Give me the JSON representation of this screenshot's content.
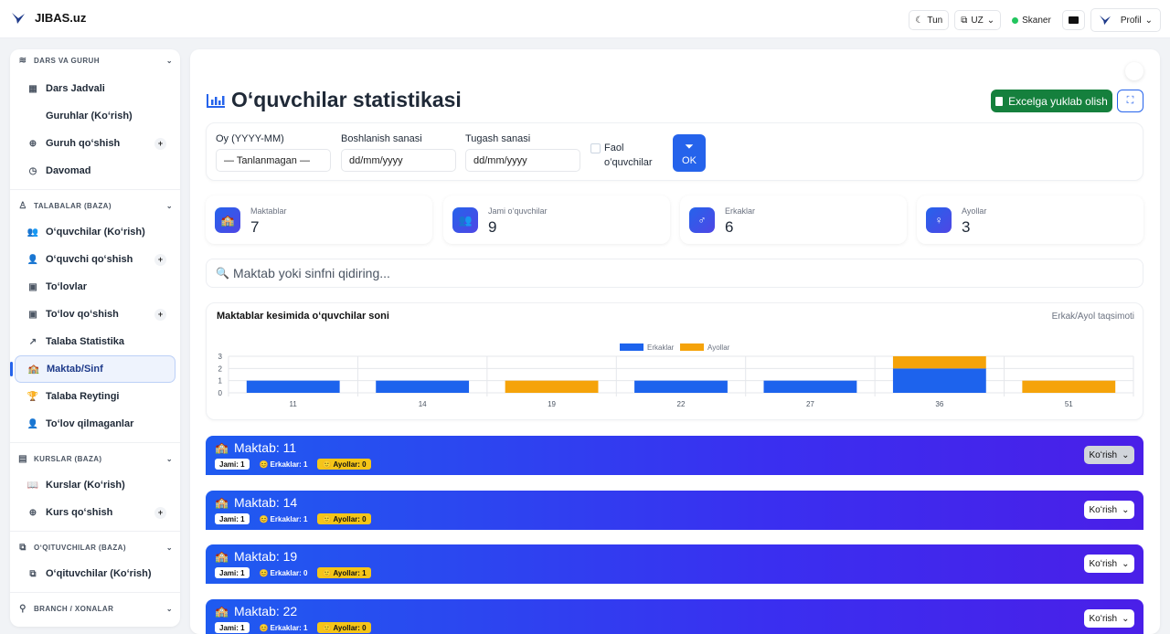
{
  "app": {
    "brand": "JIBAS.uz"
  },
  "topbar": {
    "theme_label": "Tun",
    "lang_label": "UZ",
    "scanner_label": "Skaner",
    "profile_label": "Profil"
  },
  "sidebar": {
    "sections": [
      {
        "title": "DARS VA GURUH",
        "items": [
          {
            "label": "Dars Jadvali",
            "icon": "calendar-icon"
          },
          {
            "label": "Guruhlar (Koʻrish)",
            "icon": ""
          },
          {
            "label": "Guruh qoʻshish",
            "icon": "plus-circle-icon",
            "plus": "+"
          },
          {
            "label": "Davomad",
            "icon": "clock-icon"
          }
        ]
      },
      {
        "title": "TALABALAR (BAZA)",
        "items": [
          {
            "label": "Oʻquvchilar (Koʻrish)",
            "icon": "users-icon"
          },
          {
            "label": "Oʻquvchi qoʻshish",
            "icon": "user-plus-icon",
            "plus": "+"
          },
          {
            "label": "Toʻlovlar",
            "icon": "money-icon"
          },
          {
            "label": "Toʻlov qoʻshish",
            "icon": "money-add-icon",
            "plus": "+"
          },
          {
            "label": "Talaba Statistika",
            "icon": "chart-line-icon"
          },
          {
            "label": "Maktab/Sinf",
            "icon": "school-icon",
            "active": true
          },
          {
            "label": "Talaba Reytingi",
            "icon": "trophy-icon"
          },
          {
            "label": "Toʻlov qilmaganlar",
            "icon": "user-x-icon"
          }
        ]
      },
      {
        "title": "KURSLAR (BAZA)",
        "items": [
          {
            "label": "Kurslar (Koʻrish)",
            "icon": "book-icon"
          },
          {
            "label": "Kurs qoʻshish",
            "icon": "plus-circle-icon",
            "plus": "+"
          }
        ]
      },
      {
        "title": "OʻQITUVCHILAR (BAZA)",
        "items": [
          {
            "label": "Oʻqituvchilar (Koʻrish)",
            "icon": "teacher-icon"
          }
        ]
      },
      {
        "title": "BRANCH / XONALAR",
        "items": []
      }
    ]
  },
  "page": {
    "title": "Oʻquvchilar statistikasi",
    "excel_label": "Excelga yuklab olish",
    "filters": {
      "month_label": "Oy (YYYY-MM)",
      "month_value": "— Tanlanmagan —",
      "start_label": "Boshlanish sanasi",
      "start_placeholder": "dd/mm/yyyy",
      "end_label": "Tugash sanasi",
      "end_placeholder": "dd/mm/yyyy",
      "active_label_1": "Faol",
      "active_label_2": "oʻquvchilar",
      "ok_label": "OK"
    },
    "stats": [
      {
        "label": "Maktablar",
        "value": "7"
      },
      {
        "label": "Jami oʻquvchilar",
        "value": "9"
      },
      {
        "label": "Erkaklar",
        "value": "6"
      },
      {
        "label": "Ayollar",
        "value": "3"
      }
    ],
    "search_placeholder": "Maktab yoki sinfni qidiring..."
  },
  "chart_data": {
    "type": "bar",
    "title": "Maktablar kesimida oʻquvchilar soni",
    "subtitle": "Erkak/Ayol taqsimoti",
    "categories": [
      "11",
      "14",
      "19",
      "22",
      "27",
      "36",
      "51"
    ],
    "series": [
      {
        "name": "Erkaklar",
        "color": "#1d63ed",
        "values": [
          1,
          1,
          0,
          1,
          1,
          2,
          0
        ]
      },
      {
        "name": "Ayollar",
        "color": "#f5a30a",
        "values": [
          0,
          0,
          1,
          0,
          0,
          1,
          1
        ]
      }
    ],
    "stacked": true,
    "ylim": [
      0,
      3
    ],
    "yticks": [
      "0",
      "1",
      "2",
      "3"
    ],
    "legend": "top-center",
    "grid": true
  },
  "schools": [
    {
      "name": "Maktab: 11",
      "total": "Jami: 1",
      "male": "Erkaklar: 1",
      "female": "Ayollar: 0",
      "view": "Koʻrish",
      "grey": true
    },
    {
      "name": "Maktab: 14",
      "total": "Jami: 1",
      "male": "Erkaklar: 1",
      "female": "Ayollar: 0",
      "view": "Koʻrish"
    },
    {
      "name": "Maktab: 19",
      "total": "Jami: 1",
      "male": "Erkaklar: 0",
      "female": "Ayollar: 1",
      "view": "Koʻrish"
    },
    {
      "name": "Maktab: 22",
      "total": "Jami: 1",
      "male": "Erkaklar: 1",
      "female": "Ayollar: 0",
      "view": "Koʻrish"
    }
  ]
}
